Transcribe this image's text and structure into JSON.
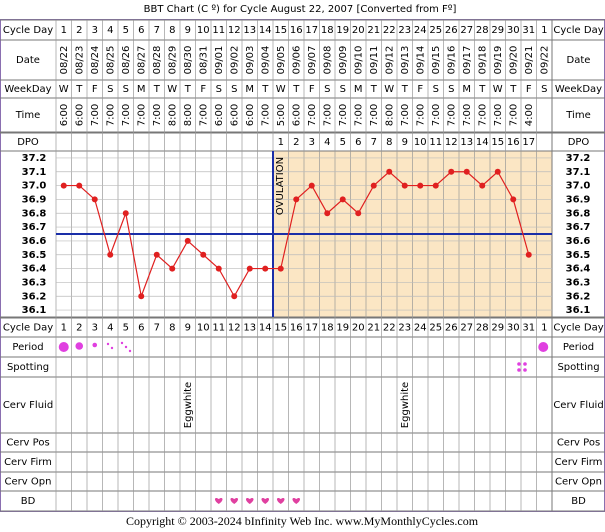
{
  "header": {
    "title": "BBT Chart (C º) for Cycle August 22, 2007  [Converted from Fº]"
  },
  "row_labels": [
    "Cycle Day",
    "Date",
    "WeekDay",
    "Time",
    "DPO",
    "Cycle Day",
    "Period",
    "Spotting",
    "Cerv Fluid",
    "Cerv Pos",
    "Cerv Firm",
    "Cerv Opn",
    "BD"
  ],
  "cycle_days": [
    1,
    2,
    3,
    4,
    5,
    6,
    7,
    8,
    9,
    10,
    11,
    12,
    13,
    14,
    15,
    16,
    17,
    18,
    19,
    20,
    21,
    22,
    23,
    24,
    25,
    26,
    27,
    28,
    29,
    30,
    31,
    1
  ],
  "dates": [
    "08/22",
    "08/23",
    "08/24",
    "08/25",
    "08/26",
    "08/27",
    "08/28",
    "08/29",
    "08/30",
    "08/31",
    "09/01",
    "09/02",
    "09/03",
    "09/04",
    "09/05",
    "09/06",
    "09/07",
    "09/08",
    "09/09",
    "09/10",
    "09/11",
    "09/12",
    "09/13",
    "09/14",
    "09/15",
    "09/16",
    "09/17",
    "09/18",
    "09/19",
    "09/20",
    "09/21",
    "09/22"
  ],
  "weekdays": [
    "W",
    "T",
    "F",
    "S",
    "S",
    "M",
    "T",
    "W",
    "T",
    "F",
    "S",
    "S",
    "M",
    "T",
    "W",
    "T",
    "F",
    "S",
    "S",
    "M",
    "T",
    "W",
    "T",
    "F",
    "S",
    "S",
    "M",
    "T",
    "W",
    "T",
    "F",
    "S"
  ],
  "times": [
    "6:00",
    "6:00",
    "7:00",
    "7:00",
    "7:00",
    "7:00",
    "7:00",
    "8:00",
    "8:00",
    "7:00",
    "6:00",
    "6:00",
    "6:00",
    "7:00",
    "5:00",
    "6:00",
    "7:00",
    "7:00",
    "7:00",
    "7:00",
    "7:00",
    "8:00",
    "7:00",
    "7:00",
    "7:00",
    "7:00",
    "7:00",
    "7:00",
    "7:00",
    "7:00",
    "4:00",
    null
  ],
  "dpo": [
    null,
    null,
    null,
    null,
    null,
    null,
    null,
    null,
    null,
    null,
    null,
    null,
    null,
    null,
    1,
    2,
    3,
    4,
    5,
    6,
    7,
    8,
    9,
    10,
    11,
    12,
    13,
    14,
    15,
    16,
    17,
    null
  ],
  "temperature": {
    "ylim": [
      36.05,
      37.25
    ],
    "yticks": [
      37.2,
      37.1,
      {
        "value": 37.0,
        "label": "37.0"
      },
      36.9,
      36.8,
      36.7,
      36.6,
      36.5,
      36.4,
      36.3,
      36.2,
      36.1
    ],
    "values": [
      37.0,
      37.0,
      36.9,
      36.5,
      36.8,
      36.2,
      36.5,
      36.4,
      36.6,
      36.5,
      36.4,
      36.2,
      36.4,
      36.4,
      36.4,
      36.9,
      37.0,
      36.8,
      36.9,
      36.8,
      37.0,
      37.1,
      37.0,
      37.0,
      37.0,
      37.1,
      37.1,
      37.0,
      37.1,
      36.9,
      36.5,
      null
    ],
    "coverline": 36.65,
    "ovulation_label": "OVULATION",
    "ovulation_day": 14,
    "line_color": "#e02020",
    "coverline_color": "#1a2ea8"
  },
  "cerv_fluid": [
    null,
    null,
    null,
    null,
    null,
    null,
    null,
    null,
    "Eggwhite",
    null,
    null,
    null,
    null,
    null,
    null,
    null,
    null,
    null,
    null,
    null,
    null,
    null,
    "Eggwhite",
    null,
    null,
    null,
    null,
    null,
    null,
    null,
    null,
    null
  ],
  "footer": "Copyright © 2003-2024 bInfinity Web Inc.    www.MyMonthlyCycles.com"
}
